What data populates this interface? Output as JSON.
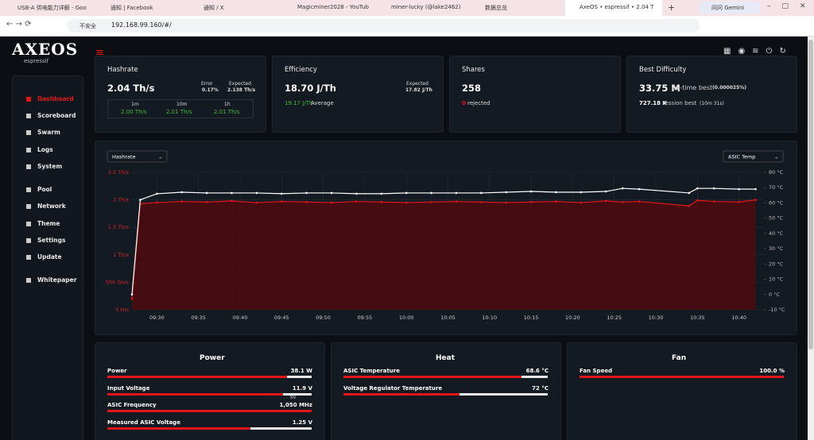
{
  "browser": {
    "tabs": [
      "USB-A 供电能力详解 - Goo",
      "通知 | Facebook",
      "通知 / X",
      "Magicminer2028 - YouTub",
      "miner-lucky (@lake2462)",
      "数据总览",
      "AxeOS • espressif • 2.04 T"
    ],
    "security": "不安全",
    "url": "192.168.99.160/#/",
    "gemini": "问问 Gemini"
  },
  "app": {
    "logo": "AXEOS",
    "logo_sub": "espressif",
    "nav": [
      "Dashboard",
      "Scoreboard",
      "Swarm",
      "Logs",
      "System",
      "Pool",
      "Network",
      "Theme",
      "Settings",
      "Update",
      "Whitepaper"
    ]
  },
  "cards": {
    "hashrate": {
      "title": "Hashrate",
      "value": "2.04 Th/s",
      "error_label": "Error",
      "error": "0.17%",
      "expected_label": "Expected",
      "expected": "2.138 Th/s",
      "windows": [
        "1m",
        "10m",
        "1h"
      ],
      "window_values": [
        "2.00 Th/s",
        "2.01 Th/s",
        "2.01 Th/s"
      ]
    },
    "efficiency": {
      "title": "Efficiency",
      "value": "18.70 J/Th",
      "expected_label": "Expected",
      "expected": "17.82 J/Th",
      "average": "19.17 J/Th",
      "average_label": "Average"
    },
    "shares": {
      "title": "Shares",
      "value": "258",
      "rejected": "0",
      "rejected_label": "rejected"
    },
    "best": {
      "title": "Best Difficulty",
      "value": "33.75 M",
      "value_label": "all-time best",
      "percent": "(0.000025%)",
      "session": "727.18 K",
      "session_label": "session best",
      "session_time": "(10m 31s)"
    }
  },
  "chart_data": {
    "type": "line",
    "left_select": "Hashrate",
    "right_select": "ASIC Temp",
    "x": [
      "09:27",
      "09:28",
      "09:30",
      "09:33",
      "09:36",
      "09:39",
      "09:42",
      "09:45",
      "09:48",
      "09:51",
      "09:54",
      "09:57",
      "10:00",
      "10:03",
      "10:06",
      "10:09",
      "10:12",
      "10:15",
      "10:18",
      "10:21",
      "10:24",
      "10:26",
      "10:28",
      "10:34",
      "10:35",
      "10:37",
      "10:40",
      "10:42"
    ],
    "xlim": [
      "09:27",
      "10:43"
    ],
    "xticks": [
      "09:30",
      "09:35",
      "09:40",
      "09:45",
      "09:50",
      "09:55",
      "10:00",
      "10:05",
      "10:10",
      "10:15",
      "10:20",
      "10:25",
      "10:30",
      "10:35",
      "10:40"
    ],
    "series": [
      {
        "name": "Hashrate",
        "color": "#e3151a",
        "values": [
          0.2,
          1.93,
          1.95,
          1.97,
          1.96,
          1.98,
          1.95,
          1.97,
          1.96,
          1.95,
          1.97,
          1.96,
          1.95,
          1.96,
          1.97,
          1.96,
          1.95,
          1.96,
          1.97,
          1.95,
          1.98,
          1.96,
          1.97,
          1.89,
          1.99,
          1.97,
          1.96,
          2.0
        ]
      },
      {
        "name": "ASIC Temp",
        "color": "#ffffff",
        "axis": "y2",
        "values": [
          0,
          62,
          66,
          67,
          66.5,
          66.5,
          66.5,
          66,
          66.5,
          66.5,
          66,
          66,
          66.5,
          66.5,
          66.5,
          66.5,
          67,
          67.5,
          67,
          67,
          67.5,
          69.5,
          69,
          66.5,
          69.5,
          69.5,
          69,
          69
        ]
      }
    ],
    "ylim": [
      0,
      2.5
    ],
    "yticks": [
      {
        "value": 0,
        "label": "0 H/s"
      },
      {
        "value": 0.5,
        "label": "500 Gh/s"
      },
      {
        "value": 1,
        "label": "1 Th/s"
      },
      {
        "value": 1.5,
        "label": "1.5 Th/s"
      },
      {
        "value": 2,
        "label": "2 Th/s"
      },
      {
        "value": 2.5,
        "label": "2.5 Th/s"
      }
    ],
    "y2lim": [
      -10,
      80
    ],
    "y2ticks": [
      {
        "value": -10,
        "label": "-10 °C"
      },
      {
        "value": 0,
        "label": "0 °C"
      },
      {
        "value": 10,
        "label": "10 °C"
      },
      {
        "value": 20,
        "label": "20 °C"
      },
      {
        "value": 30,
        "label": "30 °C"
      },
      {
        "value": 40,
        "label": "40 °C"
      },
      {
        "value": 50,
        "label": "50 °C"
      },
      {
        "value": 60,
        "label": "60 °C"
      },
      {
        "value": 70,
        "label": "70 °C"
      },
      {
        "value": 80,
        "label": "80 °C"
      }
    ],
    "grid": true
  },
  "panels": [
    {
      "title": "Power",
      "rows": [
        {
          "label": "Power",
          "value": "38.1 W"
        },
        {
          "label": "Input Voltage",
          "value": "11.9 V",
          "marker": "5V"
        },
        {
          "label": "ASIC Frequency",
          "value": "1,050 MHz"
        },
        {
          "label": "Measured ASIC Voltage",
          "value": "1.25 V"
        }
      ]
    },
    {
      "title": "Heat",
      "rows": [
        {
          "label": "ASIC Temperature",
          "value": "68.6 °C"
        },
        {
          "label": "Voltage Regulator Temperature",
          "value": "72 °C"
        }
      ]
    },
    {
      "title": "Fan",
      "rows": [
        {
          "label": "Fan Speed",
          "value": "100.0 %"
        }
      ]
    }
  ]
}
